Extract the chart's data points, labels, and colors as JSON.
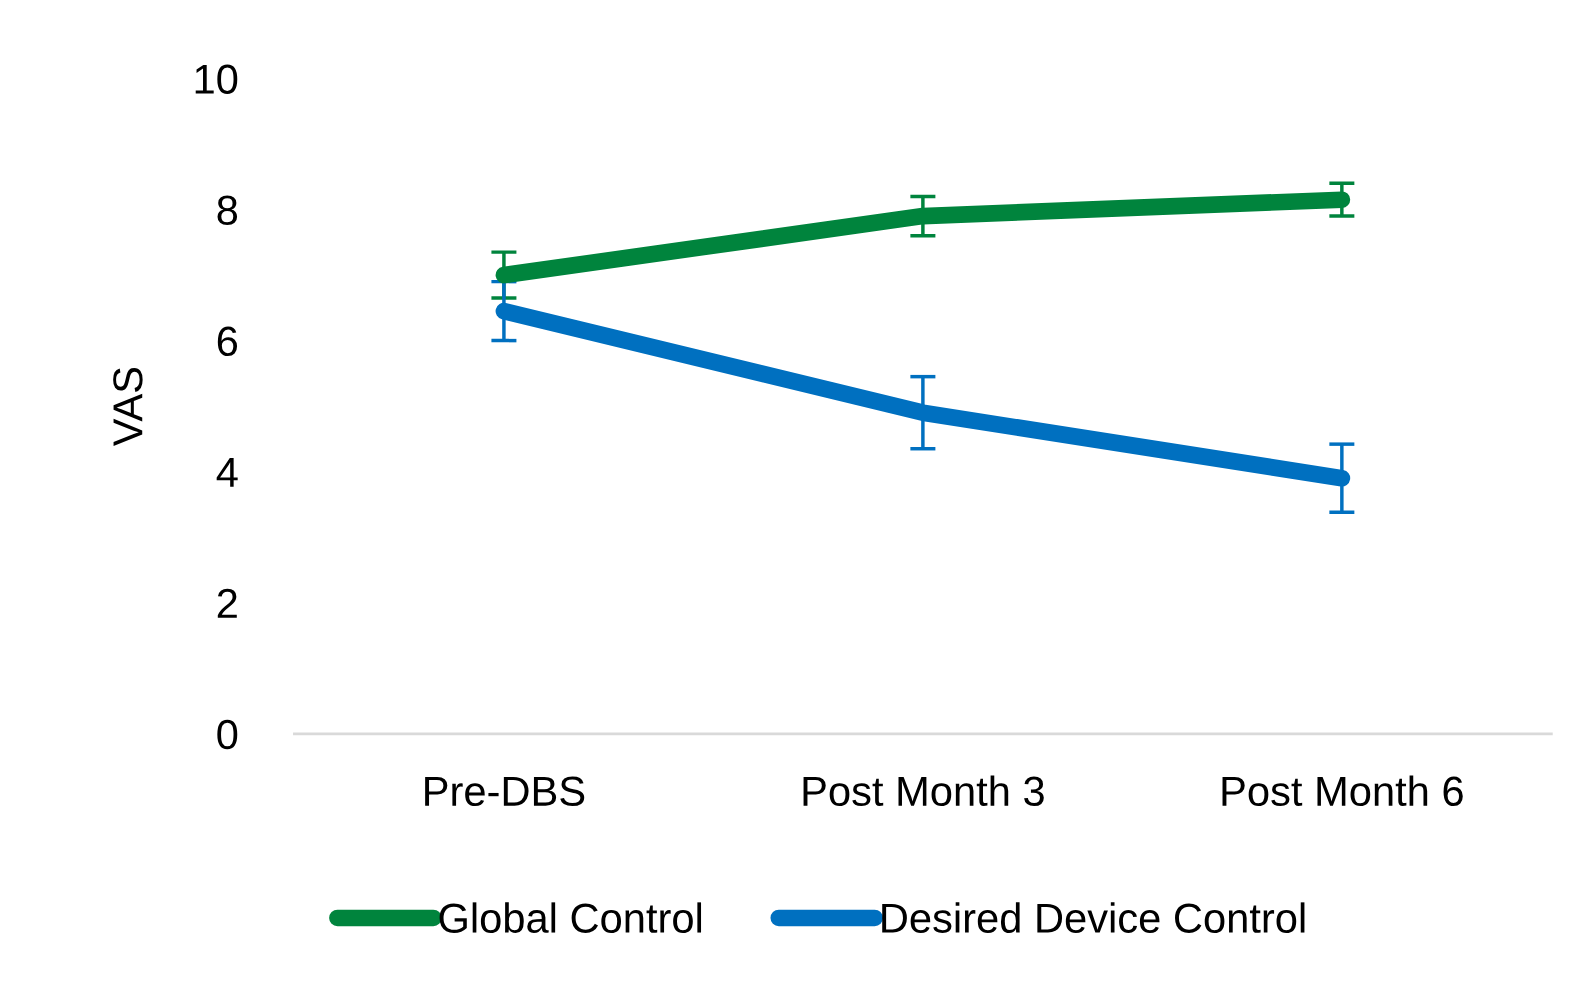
{
  "chart_data": {
    "type": "line",
    "ylabel": "VAS",
    "categories": [
      "Pre-DBS",
      "Post Month 3",
      "Post Month 6"
    ],
    "series": [
      {
        "name": "Global Control",
        "color": "#00843d",
        "values": [
          7.0,
          7.9,
          8.15
        ],
        "errors": [
          0.35,
          0.3,
          0.25
        ]
      },
      {
        "name": "Desired Device Control",
        "color": "#0070c0",
        "values": [
          6.45,
          4.9,
          3.9
        ],
        "errors": [
          0.45,
          0.55,
          0.52
        ]
      }
    ],
    "ylim": [
      0,
      10
    ],
    "yticks": [
      0,
      2,
      4,
      6,
      8,
      10
    ],
    "grid": false,
    "legend": "bottom",
    "line_style": "solid"
  }
}
